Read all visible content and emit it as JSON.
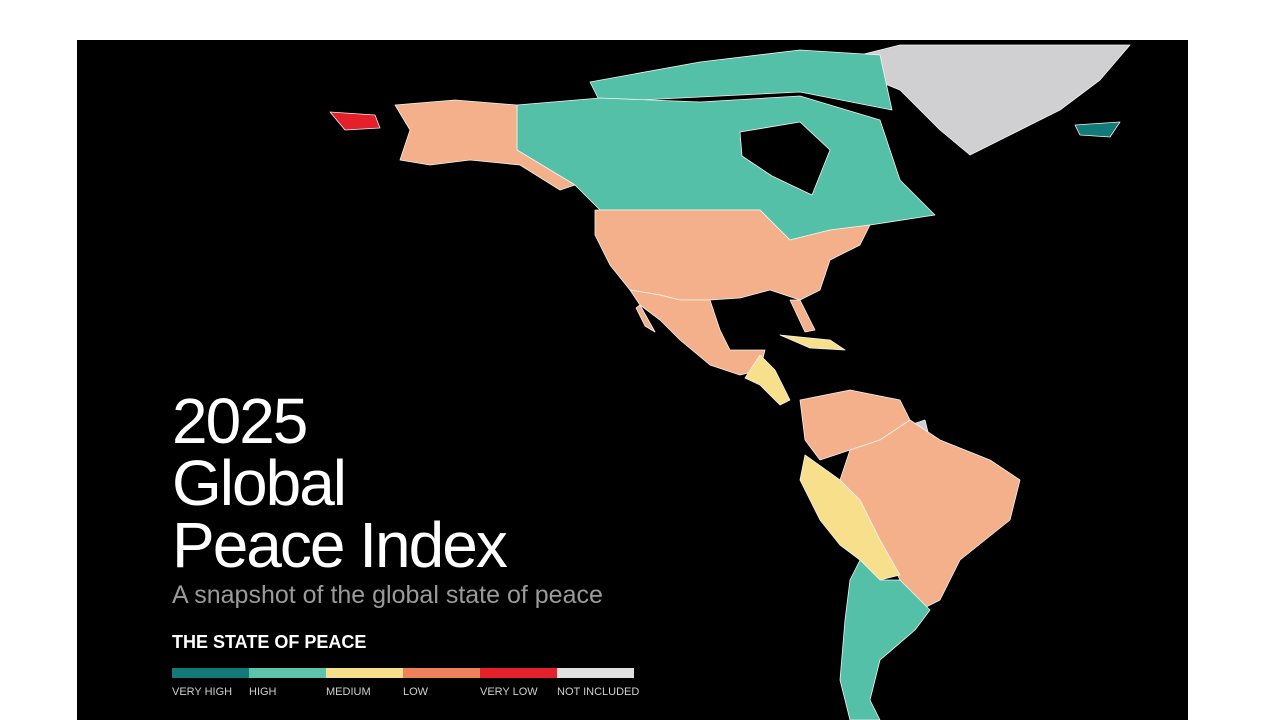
{
  "header": {
    "title_lines": [
      "2025",
      "Global",
      "Peace Index"
    ],
    "subtitle": "A snapshot of the global state of peace",
    "legend_title": "THE STATE OF PEACE"
  },
  "legend": [
    {
      "label": "VERY HIGH",
      "color": "#127a78"
    },
    {
      "label": "HIGH",
      "color": "#5cc4aa"
    },
    {
      "label": "MEDIUM",
      "color": "#f8df8c"
    },
    {
      "label": "LOW",
      "color": "#f0805a"
    },
    {
      "label": "VERY LOW",
      "color": "#e5202a"
    },
    {
      "label": "NOT INCLUDED",
      "color": "#e0e0e0"
    }
  ]
}
